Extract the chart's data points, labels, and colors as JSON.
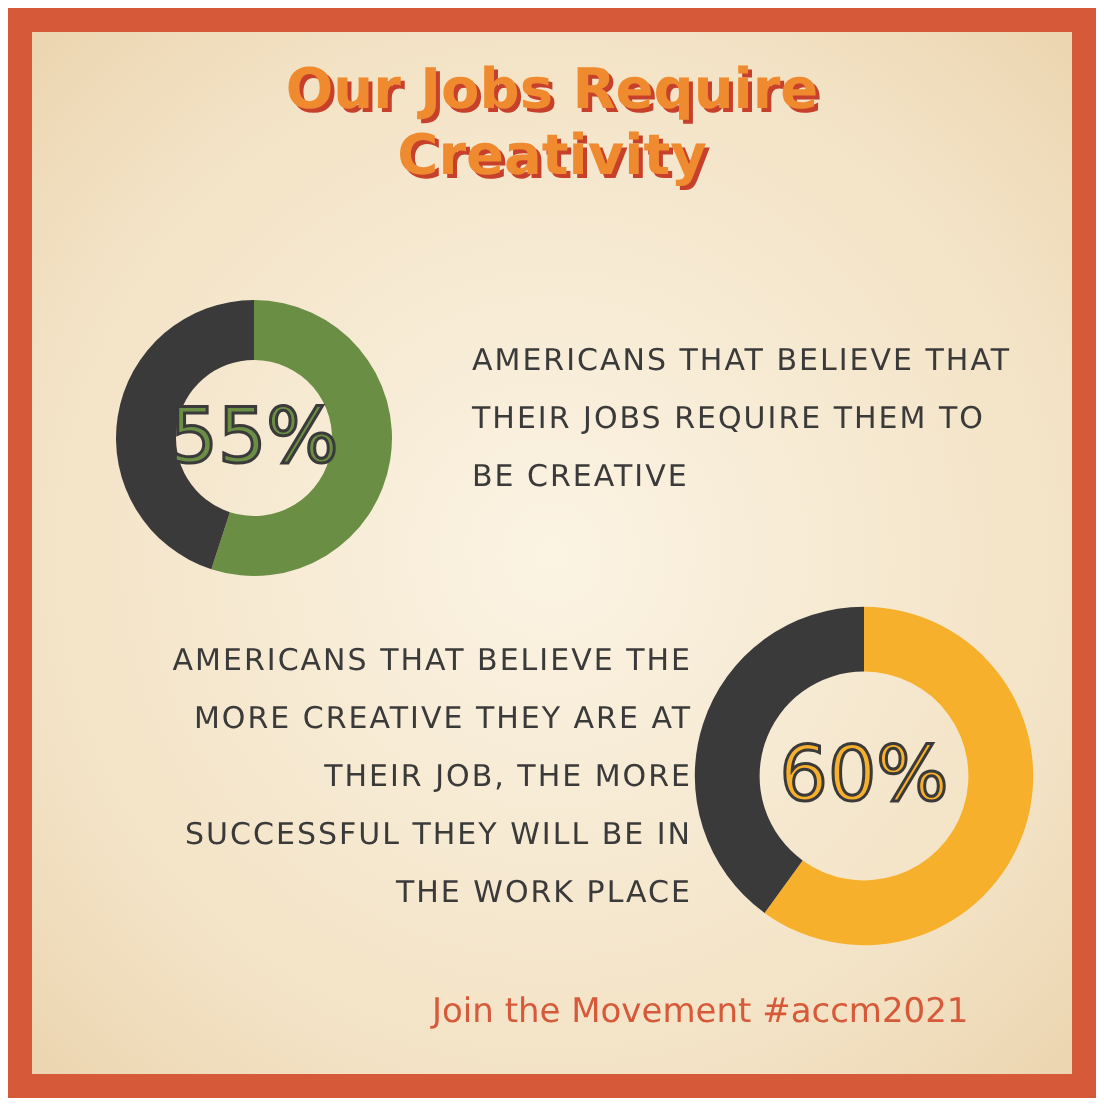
{
  "chart_data": [
    {
      "type": "donut",
      "title": "Our Jobs Require Creativity",
      "categories": [
        null,
        null
      ],
      "values": [
        55,
        45
      ],
      "colors": [
        "#6b8e45",
        "#3b3a3a"
      ],
      "annotations": [
        "55%",
        "AMERICANS THAT BELIEVE THAT THEIR JOBS REQUIRE THEM TO BE CREATIVE"
      ]
    },
    {
      "type": "donut",
      "categories": [
        null,
        null
      ],
      "values": [
        60,
        40
      ],
      "colors": [
        "#f7b02c",
        "#3b3a3a"
      ],
      "annotations": [
        "60%",
        "AMERICANS THAT BELIEVE THE MORE CREATIVE THEY ARE AT THEIR JOB, THE MORE SUCCESSFUL THEY WILL BE IN THE WORK PLACE",
        "Join the Movement #accm2021"
      ]
    }
  ]
}
